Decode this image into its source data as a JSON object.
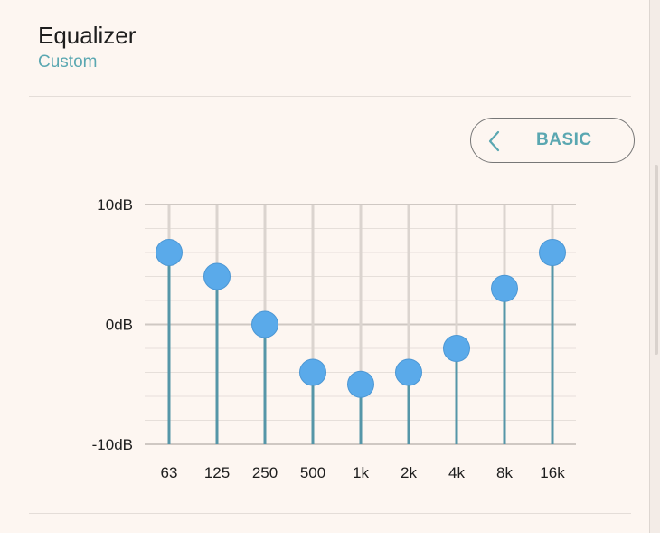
{
  "header": {
    "title": "Equalizer",
    "subtitle": "Custom"
  },
  "toggle": {
    "label": "BASIC",
    "icon": "chevron-left-icon"
  },
  "chart_data": {
    "type": "line",
    "categories": [
      "63",
      "125",
      "250",
      "500",
      "1k",
      "2k",
      "4k",
      "8k",
      "16k"
    ],
    "values": [
      6,
      4,
      0,
      -4,
      -5,
      -4,
      -2,
      3,
      6
    ],
    "ylim": [
      -10,
      10
    ],
    "ytick_labels": [
      "10dB",
      "0dB",
      "-10dB"
    ],
    "ytick_values": [
      10,
      0,
      -10
    ],
    "grid": true
  },
  "colors": {
    "accent": "#5aa7b1",
    "knob": "#5aaaea",
    "stem": "#5596a8",
    "track": "#dbd4cf",
    "background": "#fdf6f1"
  }
}
